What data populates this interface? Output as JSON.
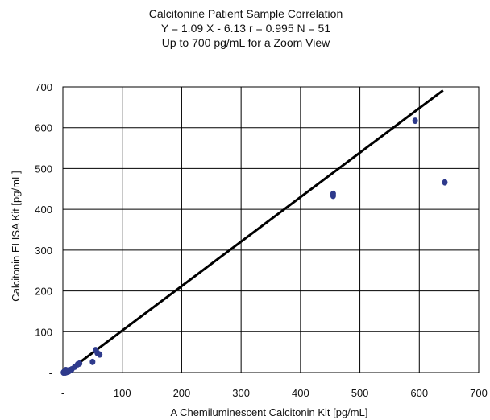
{
  "chart_data": {
    "type": "scatter",
    "title_lines": [
      "Calcitonine Patient Sample Correlation",
      "Y = 1.09 X - 6.13 r = 0.995 N = 51",
      "Up to 700 pg/mL for a Zoom View"
    ],
    "xlabel": "A Chemiluminescent Calcitonin Kit [pg/mL]",
    "ylabel": "Calcitonin ELISA Kit [pg/mL]",
    "xlim": [
      0,
      700
    ],
    "ylim": [
      0,
      700
    ],
    "x_ticks": [
      "-",
      "100",
      "200",
      "300",
      "400",
      "500",
      "600",
      "700"
    ],
    "y_ticks": [
      "-",
      "100",
      "200",
      "300",
      "400",
      "500",
      "600",
      "700"
    ],
    "grid": true,
    "point_color": "#2e3a8c",
    "line_color": "#000000",
    "regression": {
      "slope": 1.09,
      "intercept": -6.13,
      "x_range": [
        0,
        640
      ]
    },
    "points": [
      [
        1,
        0
      ],
      [
        2,
        1
      ],
      [
        3,
        2
      ],
      [
        4,
        0
      ],
      [
        5,
        3
      ],
      [
        6,
        1
      ],
      [
        7,
        4
      ],
      [
        8,
        2
      ],
      [
        9,
        5
      ],
      [
        10,
        3
      ],
      [
        3,
        4
      ],
      [
        5,
        6
      ],
      [
        12,
        6
      ],
      [
        15,
        8
      ],
      [
        20,
        14
      ],
      [
        25,
        20
      ],
      [
        28,
        22
      ],
      [
        50,
        26
      ],
      [
        55,
        55
      ],
      [
        58,
        48
      ],
      [
        62,
        44
      ],
      [
        455,
        433
      ],
      [
        455,
        438
      ],
      [
        593,
        617
      ],
      [
        643,
        466
      ]
    ]
  }
}
